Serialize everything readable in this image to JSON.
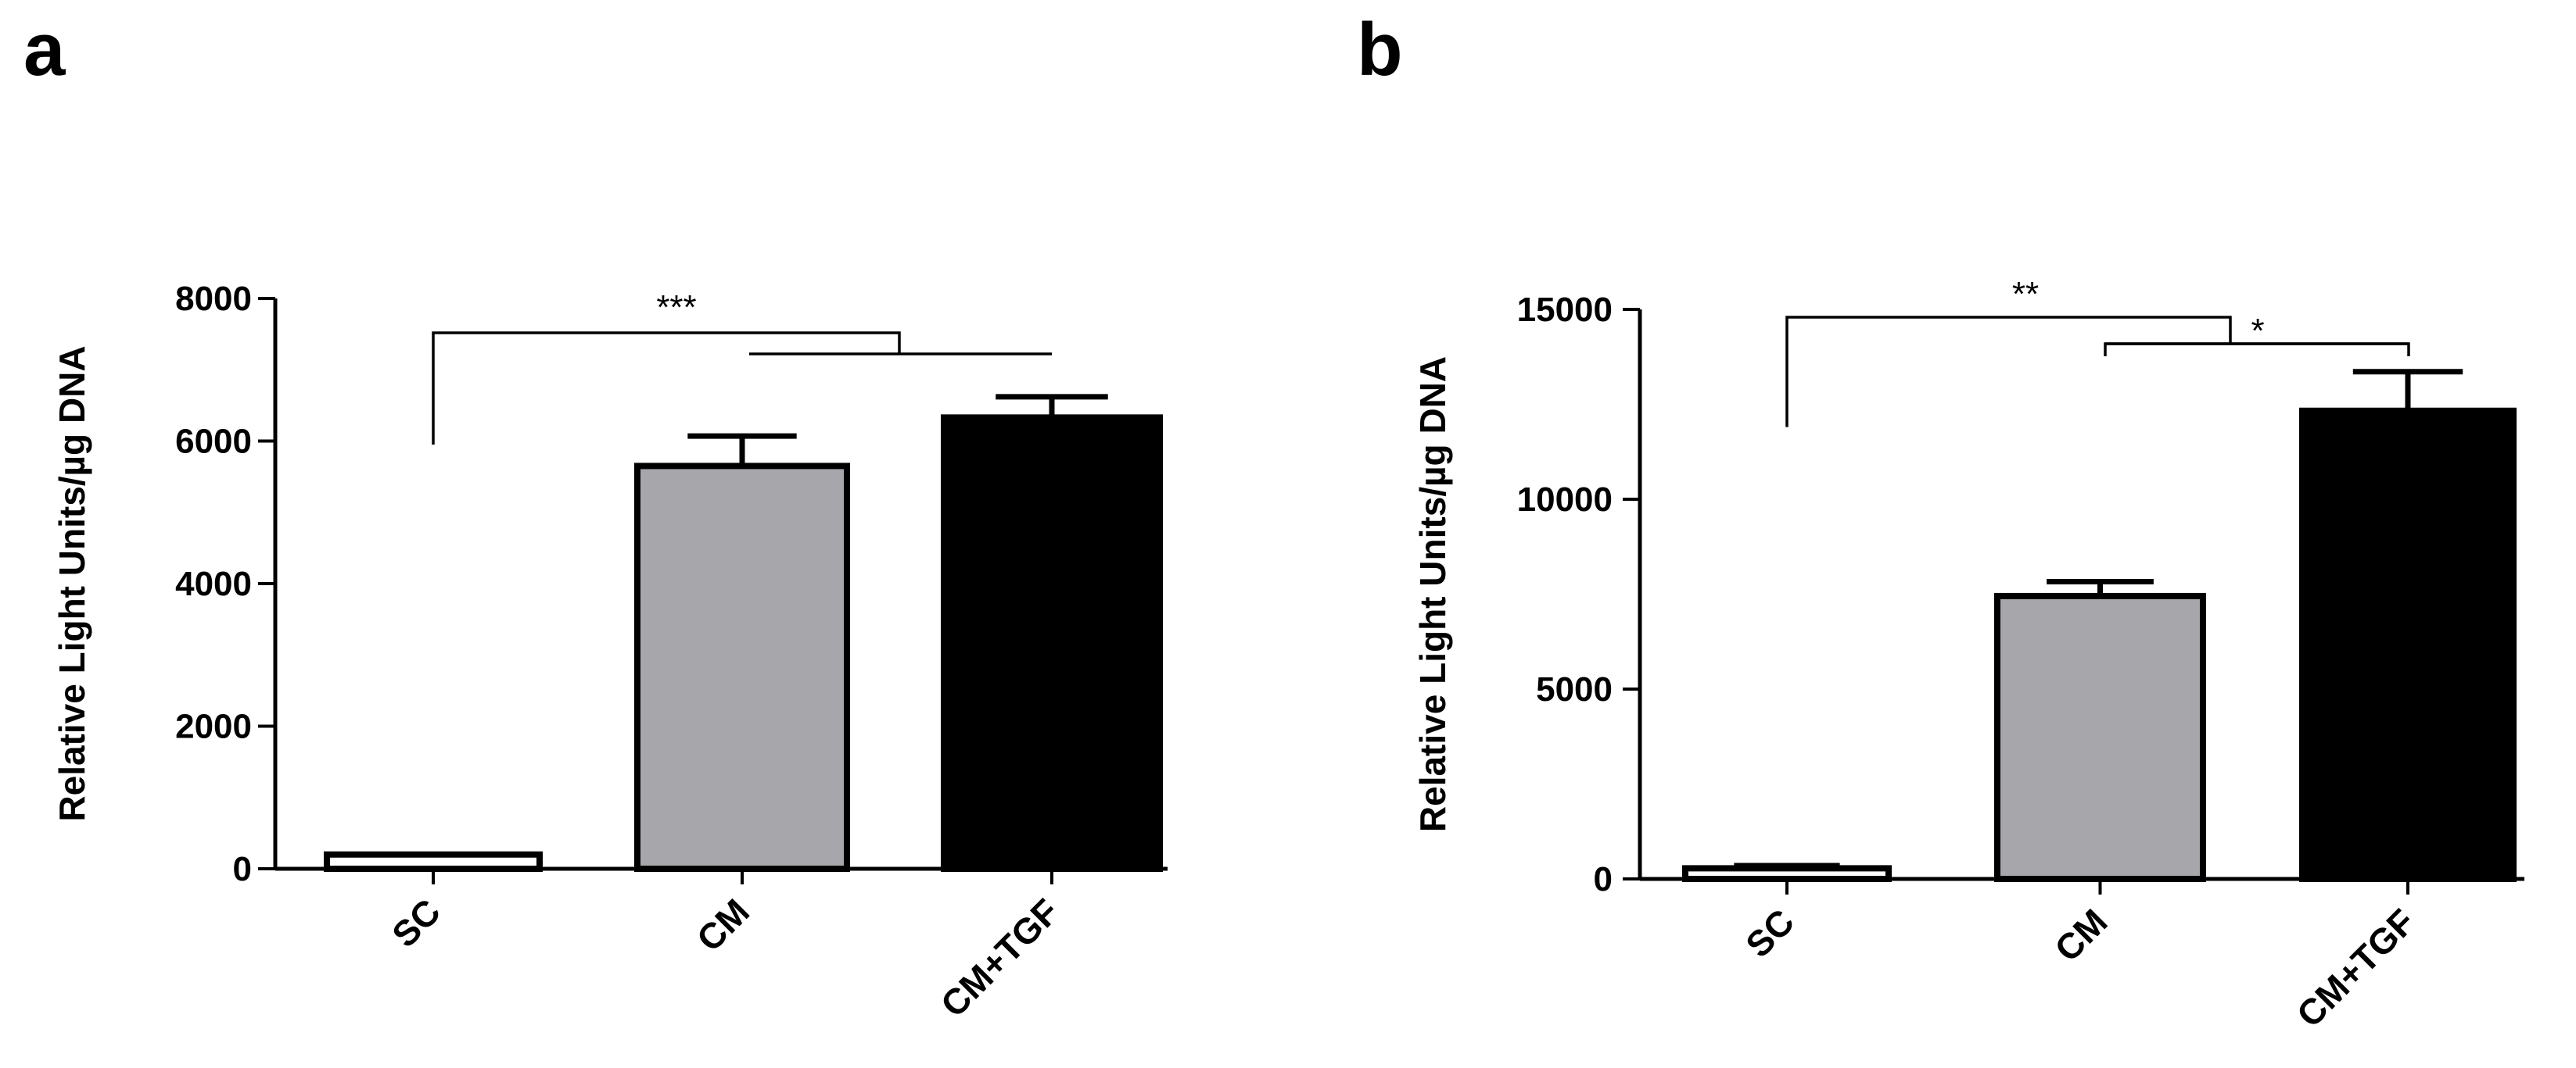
{
  "chart_data": [
    {
      "panel": "a",
      "type": "bar",
      "categories": [
        "SC",
        "CM",
        "CM+TGF"
      ],
      "values": [
        200,
        5650,
        6330
      ],
      "errors": [
        0,
        420,
        290
      ],
      "colors": [
        "#ffffff",
        "#a7a6ab",
        "#000000"
      ],
      "ylabel": "Relative Light Units/µg DNA",
      "ylim": [
        0,
        8000
      ],
      "yticks": [
        0,
        2000,
        4000,
        6000,
        8000
      ],
      "significance": [
        {
          "from": "SC",
          "to_pair": [
            "CM",
            "CM+TGF"
          ],
          "label": "***"
        }
      ],
      "grid": false
    },
    {
      "panel": "b",
      "type": "bar",
      "categories": [
        "SC",
        "CM",
        "CM+TGF"
      ],
      "values": [
        280,
        7450,
        12330
      ],
      "errors": [
        70,
        380,
        1030
      ],
      "colors": [
        "#ffffff",
        "#a7a6ab",
        "#000000"
      ],
      "ylabel": "Relative Light Units/µg DNA",
      "ylim": [
        0,
        15000
      ],
      "yticks": [
        0,
        5000,
        10000,
        15000
      ],
      "significance": [
        {
          "from": "SC",
          "to_pair": [
            "CM",
            "CM+TGF"
          ],
          "label": "**"
        },
        {
          "from": "CM",
          "to": "CM+TGF",
          "label": "*"
        }
      ],
      "grid": false
    }
  ]
}
